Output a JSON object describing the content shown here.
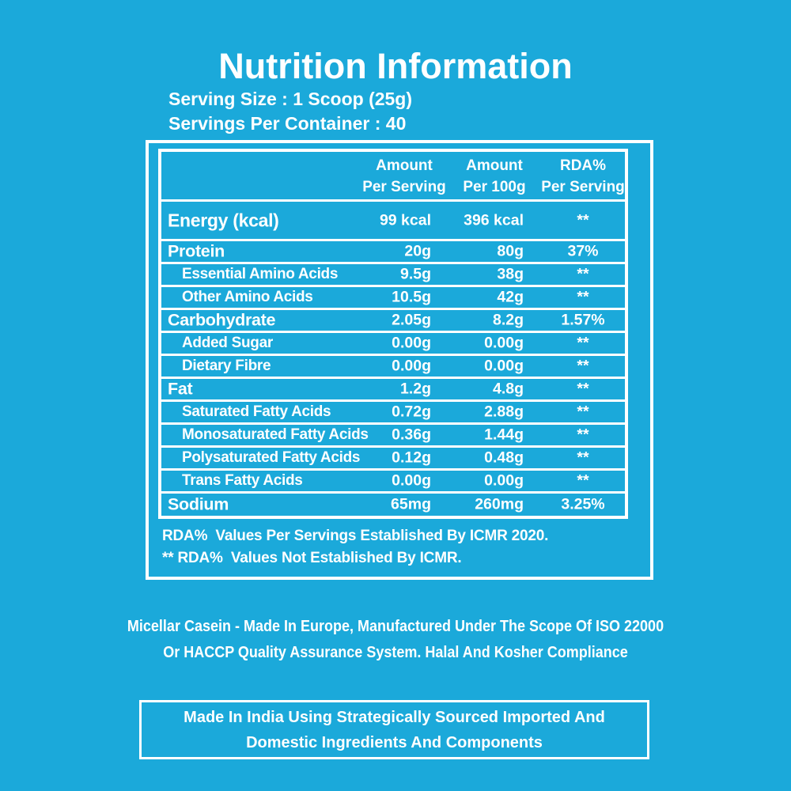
{
  "colors": {
    "background": "#1BA9DA",
    "text": "#FFFFFF",
    "lines": "#FFFFFF"
  },
  "title": "Nutrition Information",
  "serving_size": "Serving Size : 1 Scoop (25g)",
  "servings_per_container": "Servings Per Container : 40",
  "table": {
    "headers": {
      "col2": [
        "Amount",
        "Per Serving"
      ],
      "col3": [
        "Amount",
        "Per 100g"
      ],
      "col4": [
        "RDA%",
        "Per Serving"
      ]
    },
    "rows": [
      {
        "label": "Energy (kcal)",
        "per_serving": "99 kcal",
        "per_100g": "396 kcal",
        "rda": "**",
        "type": "main"
      },
      {
        "label": "Protein",
        "per_serving": "20g",
        "per_100g": "80g",
        "rda": "37%",
        "type": "main"
      },
      {
        "label": "Essential Amino Acids",
        "per_serving": "9.5g",
        "per_100g": "38g",
        "rda": "**",
        "type": "sub"
      },
      {
        "label": "Other Amino Acids",
        "per_serving": "10.5g",
        "per_100g": "42g",
        "rda": "**",
        "type": "sub"
      },
      {
        "label": "Carbohydrate",
        "per_serving": "2.05g",
        "per_100g": "8.2g",
        "rda": "1.57%",
        "type": "main"
      },
      {
        "label": "Added Sugar",
        "per_serving": "0.00g",
        "per_100g": "0.00g",
        "rda": "**",
        "type": "sub"
      },
      {
        "label": "Dietary Fibre",
        "per_serving": "0.00g",
        "per_100g": "0.00g",
        "rda": "**",
        "type": "sub"
      },
      {
        "label": "Fat",
        "per_serving": "1.2g",
        "per_100g": "4.8g",
        "rda": "**",
        "type": "main"
      },
      {
        "label": "Saturated Fatty Acids",
        "per_serving": "0.72g",
        "per_100g": "2.88g",
        "rda": "**",
        "type": "sub"
      },
      {
        "label": "Monosaturated Fatty Acids",
        "per_serving": "0.36g",
        "per_100g": "1.44g",
        "rda": "**",
        "type": "sub"
      },
      {
        "label": "Polysaturated Fatty Acids",
        "per_serving": "0.12g",
        "per_100g": "0.48g",
        "rda": "**",
        "type": "sub"
      },
      {
        "label": "Trans Fatty Acids",
        "per_serving": "0.00g",
        "per_100g": "0.00g",
        "rda": "**",
        "type": "sub"
      },
      {
        "label": "Sodium",
        "per_serving": "65mg",
        "per_100g": "260mg",
        "rda": "3.25%",
        "type": "main"
      }
    ],
    "footnotes": [
      "RDA%  Values Per Servings Established By ICMR 2020.",
      "** RDA%  Values Not Established By ICMR."
    ]
  },
  "origin_note": {
    "line1": "Micellar Casein - Made In Europe, Manufactured Under The Scope Of ISO 22000",
    "line2": "Or HACCP Quality Assurance System. Halal And Kosher Compliance"
  },
  "made_in_box": {
    "line1": "Made In India Using Strategically Sourced Imported And",
    "line2": "Domestic Ingredients And Components"
  }
}
